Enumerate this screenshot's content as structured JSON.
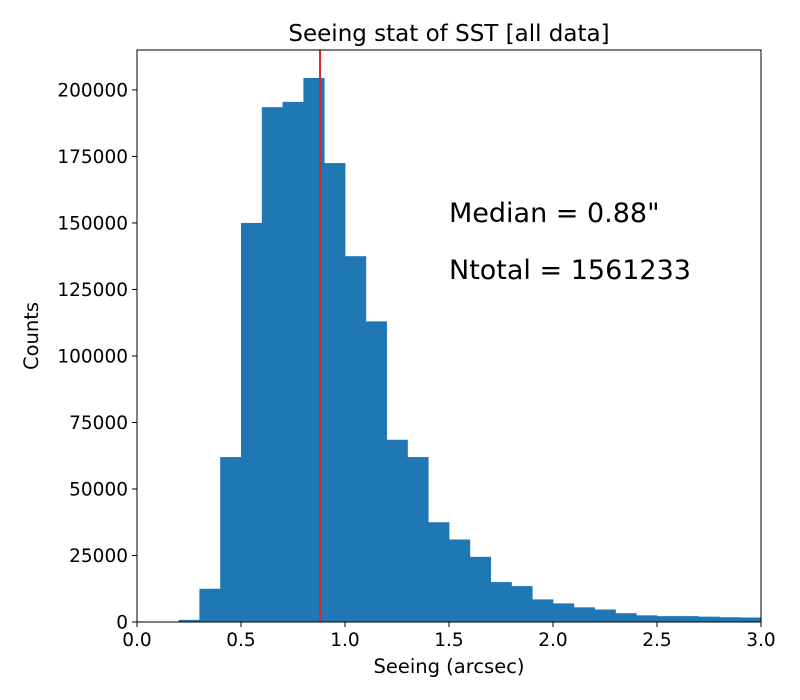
{
  "chart_data": {
    "type": "bar",
    "title": "Seeing stat of SST [all data]",
    "xlabel": "Seeing (arcsec)",
    "ylabel": "Counts",
    "xlim": [
      0.0,
      3.0
    ],
    "ylim": [
      0,
      215000
    ],
    "xticks": [
      0.0,
      0.5,
      1.0,
      1.5,
      2.0,
      2.5,
      3.0
    ],
    "xtick_labels": [
      "0.0",
      "0.5",
      "1.0",
      "1.5",
      "2.0",
      "2.5",
      "3.0"
    ],
    "yticks": [
      0,
      25000,
      50000,
      75000,
      100000,
      125000,
      150000,
      175000,
      200000
    ],
    "ytick_labels": [
      "0",
      "25000",
      "50000",
      "75000",
      "100000",
      "125000",
      "150000",
      "175000",
      "200000"
    ],
    "bin_width": 0.1,
    "bins": [
      {
        "x0": 0.2,
        "value": 800
      },
      {
        "x0": 0.3,
        "value": 12500
      },
      {
        "x0": 0.4,
        "value": 62000
      },
      {
        "x0": 0.5,
        "value": 150000
      },
      {
        "x0": 0.6,
        "value": 193500
      },
      {
        "x0": 0.7,
        "value": 195500
      },
      {
        "x0": 0.8,
        "value": 204500
      },
      {
        "x0": 0.9,
        "value": 172500
      },
      {
        "x0": 1.0,
        "value": 137500
      },
      {
        "x0": 1.1,
        "value": 113000
      },
      {
        "x0": 1.2,
        "value": 68500
      },
      {
        "x0": 1.3,
        "value": 62000
      },
      {
        "x0": 1.4,
        "value": 37500
      },
      {
        "x0": 1.5,
        "value": 31000
      },
      {
        "x0": 1.6,
        "value": 24500
      },
      {
        "x0": 1.7,
        "value": 15000
      },
      {
        "x0": 1.8,
        "value": 13500
      },
      {
        "x0": 1.9,
        "value": 8500
      },
      {
        "x0": 2.0,
        "value": 7000
      },
      {
        "x0": 2.1,
        "value": 5500
      },
      {
        "x0": 2.2,
        "value": 4700
      },
      {
        "x0": 2.3,
        "value": 3300
      },
      {
        "x0": 2.4,
        "value": 2500
      },
      {
        "x0": 2.5,
        "value": 2200
      },
      {
        "x0": 2.6,
        "value": 2200
      },
      {
        "x0": 2.7,
        "value": 2000
      },
      {
        "x0": 2.8,
        "value": 1800
      },
      {
        "x0": 2.9,
        "value": 1700
      }
    ],
    "median": 0.88,
    "annotations": [
      "Median = 0.88\"",
      "Ntotal = 1561233"
    ],
    "grid": false,
    "colors": {
      "bars": "#1f77b4",
      "median_line": "#d62728"
    }
  }
}
